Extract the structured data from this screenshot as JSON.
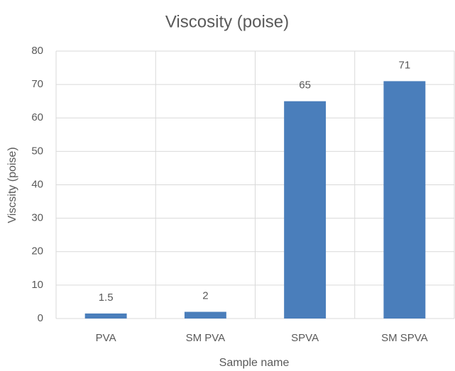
{
  "chart_data": {
    "type": "bar",
    "title": "Viscosity (poise)",
    "x_label": "Sample name",
    "y_label": "Viscsity (poise)",
    "categories": [
      "PVA",
      "SM PVA",
      "SPVA",
      "SM SPVA"
    ],
    "values": [
      1.5,
      2,
      65,
      71
    ],
    "color": "#4a7ebb",
    "ylim": [
      0,
      80
    ],
    "yticks": [
      0,
      10,
      20,
      30,
      40,
      50,
      60,
      70,
      80
    ],
    "grid": true,
    "data_labels": true
  }
}
